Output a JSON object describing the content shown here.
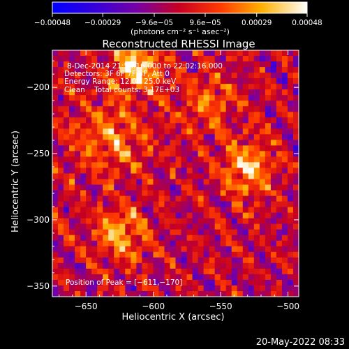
{
  "chart_data": {
    "type": "heatmap",
    "title": "Reconstructed RHESSI Image",
    "xlabel": "Heliocentric X (arcsec)",
    "ylabel": "Heliocentric Y (arcsec)",
    "xlim": [
      -675,
      -492
    ],
    "ylim": [
      -358,
      -172
    ],
    "x_ticks": [
      -650,
      -600,
      -550,
      -500
    ],
    "x_tick_labels": [
      "−650",
      "−600",
      "−550",
      "−500"
    ],
    "y_ticks": [
      -200,
      -250,
      -300,
      -350
    ],
    "y_tick_labels": [
      "−200",
      "−250",
      "−300",
      "−350"
    ],
    "grid": false,
    "colorbar": {
      "range": [
        -0.00048,
        0.00048
      ],
      "colormap": "blue-purple-red-yellow-white",
      "tick_values": [
        -0.00048,
        -0.00029,
        -9.6e-05,
        9.6e-05,
        0.00029,
        0.00048
      ],
      "tick_labels": [
        "−0.00048",
        "−0.00029",
        "−9.6e−05",
        "9.6e−05",
        "0.00029",
        "0.00048"
      ],
      "units": "(photons cm⁻² s⁻¹ asec⁻²)"
    },
    "annotations": [
      "8-Dec-2014 21:56:16.000 to 22:02:16.000",
      "Detectors: 3F 6F 7F 8F, Att 0",
      "Energy Range: 12.0 - 25.0 keV",
      "Clean    Total counts: 3.17E+03"
    ],
    "peak_label": "Position of Peak = [−611,−170]",
    "peak": [
      -611,
      -170
    ]
  },
  "timestamp": "20-May-2022 08:33"
}
